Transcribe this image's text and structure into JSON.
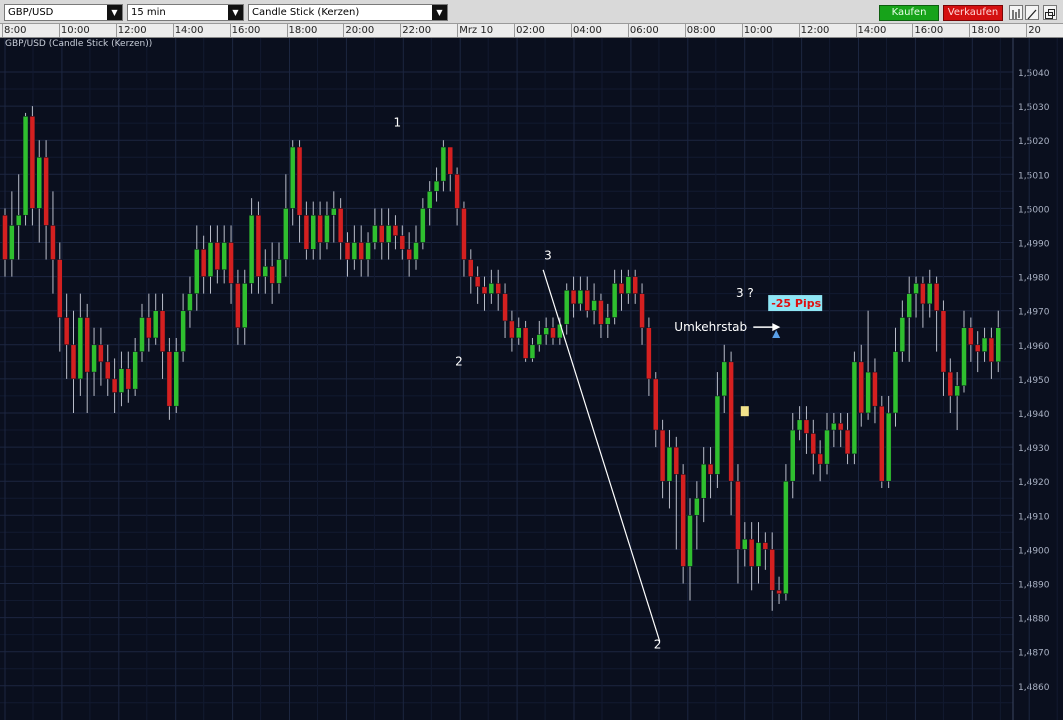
{
  "toolbar": {
    "symbol": "GBP/USD",
    "interval": "15 min",
    "chart_style": "Candle Stick (Kerzen)",
    "buy_label": "Kaufen",
    "sell_label": "Verkaufen",
    "colors": {
      "buy": "#17a31a",
      "sell": "#d41010"
    }
  },
  "chart_title": "GBP/USD (Candle Stick (Kerzen))",
  "chart_data": {
    "type": "candlestick",
    "x_tick_labels": [
      "8:00",
      "10:00",
      "12:00",
      "14:00",
      "16:00",
      "18:00",
      "20:00",
      "22:00",
      "Mrz 10",
      "02:00",
      "04:00",
      "06:00",
      "08:00",
      "10:00",
      "12:00",
      "14:00",
      "16:00",
      "18:00",
      "20"
    ],
    "y_tick_labels": [
      "1,5040",
      "1,5030",
      "1,5020",
      "1,5010",
      "1,5000",
      "1,4990",
      "1,4980",
      "1,4970",
      "1,4960",
      "1,4950",
      "1,4940",
      "1,4930",
      "1,4920",
      "1,4910",
      "1,4900",
      "1,4890",
      "1,4880",
      "1,4870",
      "1,4860"
    ],
    "ylim": [
      1.4855,
      1.505
    ],
    "colors": {
      "up": "#2fbf2f",
      "down": "#d42020",
      "background": "#0a0f1e",
      "grid": "#1c2640"
    },
    "candles": [
      [
        1.4998,
        1.4985,
        1.5,
        1.498
      ],
      [
        1.4985,
        1.4995,
        1.5005,
        1.498
      ],
      [
        1.4995,
        1.4998,
        1.501,
        1.4985
      ],
      [
        1.4998,
        1.5027,
        1.5028,
        1.4995
      ],
      [
        1.5027,
        1.5,
        1.503,
        1.4995
      ],
      [
        1.5,
        1.5015,
        1.502,
        1.499
      ],
      [
        1.5015,
        1.4995,
        1.502,
        1.4985
      ],
      [
        1.4995,
        1.4985,
        1.5005,
        1.4975
      ],
      [
        1.4985,
        1.4968,
        1.499,
        1.4958
      ],
      [
        1.4968,
        1.496,
        1.4975,
        1.495
      ],
      [
        1.496,
        1.495,
        1.497,
        1.494
      ],
      [
        1.495,
        1.4968,
        1.4975,
        1.4945
      ],
      [
        1.4968,
        1.4952,
        1.4972,
        1.494
      ],
      [
        1.4952,
        1.496,
        1.4965,
        1.4945
      ],
      [
        1.496,
        1.4955,
        1.4965,
        1.4948
      ],
      [
        1.4955,
        1.495,
        1.496,
        1.4945
      ],
      [
        1.495,
        1.4946,
        1.4956,
        1.494
      ],
      [
        1.4946,
        1.4953,
        1.4958,
        1.4942
      ],
      [
        1.4953,
        1.4947,
        1.4958,
        1.4943
      ],
      [
        1.4947,
        1.4958,
        1.4962,
        1.4945
      ],
      [
        1.4958,
        1.4968,
        1.4972,
        1.4955
      ],
      [
        1.4968,
        1.4962,
        1.4975,
        1.4958
      ],
      [
        1.4962,
        1.497,
        1.4975,
        1.496
      ],
      [
        1.497,
        1.4958,
        1.4975,
        1.495
      ],
      [
        1.4958,
        1.4942,
        1.4962,
        1.4938
      ],
      [
        1.4942,
        1.4958,
        1.4962,
        1.494
      ],
      [
        1.4958,
        1.497,
        1.4975,
        1.4955
      ],
      [
        1.497,
        1.4975,
        1.498,
        1.4965
      ],
      [
        1.4975,
        1.4988,
        1.4995,
        1.497
      ],
      [
        1.4988,
        1.498,
        1.4992,
        1.4975
      ],
      [
        1.498,
        1.499,
        1.4995,
        1.4975
      ],
      [
        1.499,
        1.4982,
        1.4995,
        1.4978
      ],
      [
        1.4982,
        1.499,
        1.4995,
        1.4978
      ],
      [
        1.499,
        1.4978,
        1.4995,
        1.4972
      ],
      [
        1.4978,
        1.4965,
        1.4982,
        1.496
      ],
      [
        1.4965,
        1.4978,
        1.4982,
        1.496
      ],
      [
        1.4978,
        1.4998,
        1.5003,
        1.4975
      ],
      [
        1.4998,
        1.498,
        1.5002,
        1.4975
      ],
      [
        1.498,
        1.4983,
        1.4988,
        1.4975
      ],
      [
        1.4983,
        1.4978,
        1.499,
        1.4972
      ],
      [
        1.4978,
        1.4985,
        1.499,
        1.4975
      ],
      [
        1.4985,
        1.5,
        1.501,
        1.498
      ],
      [
        1.5,
        1.5018,
        1.502,
        1.4995
      ],
      [
        1.5018,
        1.4998,
        1.502,
        1.499
      ],
      [
        1.4998,
        1.4988,
        1.5002,
        1.4985
      ],
      [
        1.4988,
        1.4998,
        1.5002,
        1.4985
      ],
      [
        1.4998,
        1.499,
        1.5002,
        1.4985
      ],
      [
        1.499,
        1.4998,
        1.5002,
        1.4988
      ],
      [
        1.4998,
        1.5,
        1.5005,
        1.499
      ],
      [
        1.5,
        1.499,
        1.5003,
        1.4985
      ],
      [
        1.499,
        1.4985,
        1.4993,
        1.498
      ],
      [
        1.4985,
        1.499,
        1.4995,
        1.4982
      ],
      [
        1.499,
        1.4985,
        1.4995,
        1.498
      ],
      [
        1.4985,
        1.499,
        1.4993,
        1.498
      ],
      [
        1.499,
        1.4995,
        1.5,
        1.4988
      ],
      [
        1.4995,
        1.499,
        1.5,
        1.4985
      ],
      [
        1.499,
        1.4995,
        1.5,
        1.4985
      ],
      [
        1.4995,
        1.4992,
        1.4998,
        1.4988
      ],
      [
        1.4992,
        1.4988,
        1.4995,
        1.4985
      ],
      [
        1.4988,
        1.4985,
        1.4993,
        1.498
      ],
      [
        1.4985,
        1.499,
        1.4995,
        1.4982
      ],
      [
        1.499,
        1.5,
        1.5003,
        1.4988
      ],
      [
        1.5,
        1.5005,
        1.5008,
        1.4995
      ],
      [
        1.5005,
        1.5008,
        1.5012,
        1.5002
      ],
      [
        1.5008,
        1.5018,
        1.502,
        1.5005
      ],
      [
        1.5018,
        1.501,
        1.5018,
        1.5005
      ],
      [
        1.501,
        1.5,
        1.5012,
        1.4995
      ],
      [
        1.5,
        1.4985,
        1.5002,
        1.498
      ],
      [
        1.4985,
        1.498,
        1.4988,
        1.4975
      ],
      [
        1.498,
        1.4977,
        1.4983,
        1.4972
      ],
      [
        1.4977,
        1.4975,
        1.498,
        1.497
      ],
      [
        1.4975,
        1.4978,
        1.4982,
        1.4972
      ],
      [
        1.4978,
        1.4975,
        1.4982,
        1.497
      ],
      [
        1.4975,
        1.4967,
        1.4978,
        1.4962
      ],
      [
        1.4967,
        1.4962,
        1.497,
        1.4958
      ],
      [
        1.4962,
        1.4965,
        1.4968,
        1.496
      ],
      [
        1.4965,
        1.4956,
        1.4967,
        1.4955
      ],
      [
        1.4956,
        1.496,
        1.4962,
        1.4955
      ],
      [
        1.496,
        1.4963,
        1.4967,
        1.4958
      ],
      [
        1.4963,
        1.4965,
        1.4968,
        1.496
      ],
      [
        1.4965,
        1.4962,
        1.4968,
        1.496
      ],
      [
        1.4962,
        1.4966,
        1.4968,
        1.496
      ],
      [
        1.4966,
        1.4976,
        1.4978,
        1.4963
      ],
      [
        1.4976,
        1.4972,
        1.498,
        1.4968
      ],
      [
        1.4972,
        1.4976,
        1.498,
        1.497
      ],
      [
        1.4976,
        1.497,
        1.498,
        1.4968
      ],
      [
        1.497,
        1.4973,
        1.4978,
        1.4966
      ],
      [
        1.4973,
        1.4966,
        1.4975,
        1.4962
      ],
      [
        1.4966,
        1.4968,
        1.4972,
        1.4962
      ],
      [
        1.4968,
        1.4978,
        1.4982,
        1.4966
      ],
      [
        1.4978,
        1.4975,
        1.4982,
        1.497
      ],
      [
        1.4975,
        1.498,
        1.4982,
        1.4972
      ],
      [
        1.498,
        1.4975,
        1.4982,
        1.4972
      ],
      [
        1.4975,
        1.4965,
        1.4978,
        1.496
      ],
      [
        1.4965,
        1.495,
        1.4968,
        1.4945
      ],
      [
        1.495,
        1.4935,
        1.4952,
        1.493
      ],
      [
        1.4935,
        1.492,
        1.4938,
        1.4915
      ],
      [
        1.492,
        1.493,
        1.4935,
        1.4912
      ],
      [
        1.493,
        1.4922,
        1.4933,
        1.49
      ],
      [
        1.4922,
        1.4895,
        1.4925,
        1.489
      ],
      [
        1.4895,
        1.491,
        1.4915,
        1.4885
      ],
      [
        1.491,
        1.4915,
        1.492,
        1.49
      ],
      [
        1.4915,
        1.4925,
        1.493,
        1.4908
      ],
      [
        1.4925,
        1.4922,
        1.493,
        1.4915
      ],
      [
        1.4922,
        1.4945,
        1.4952,
        1.4918
      ],
      [
        1.4945,
        1.4955,
        1.496,
        1.494
      ],
      [
        1.4955,
        1.492,
        1.4958,
        1.491
      ],
      [
        1.492,
        1.49,
        1.4925,
        1.489
      ],
      [
        1.49,
        1.4903,
        1.4908,
        1.4895
      ],
      [
        1.4903,
        1.4895,
        1.4908,
        1.4888
      ],
      [
        1.4895,
        1.4902,
        1.4908,
        1.489
      ],
      [
        1.4902,
        1.49,
        1.4905,
        1.4894
      ],
      [
        1.49,
        1.4888,
        1.4905,
        1.4882
      ],
      [
        1.4888,
        1.4887,
        1.4892,
        1.4884
      ],
      [
        1.4887,
        1.492,
        1.4925,
        1.4885
      ],
      [
        1.492,
        1.4935,
        1.494,
        1.4915
      ],
      [
        1.4935,
        1.4938,
        1.4942,
        1.4932
      ],
      [
        1.4938,
        1.4934,
        1.4942,
        1.4928
      ],
      [
        1.4934,
        1.4928,
        1.4938,
        1.4922
      ],
      [
        1.4928,
        1.4925,
        1.4932,
        1.492
      ],
      [
        1.4925,
        1.4935,
        1.494,
        1.4922
      ],
      [
        1.4935,
        1.4937,
        1.494,
        1.493
      ],
      [
        1.4937,
        1.4935,
        1.494,
        1.493
      ],
      [
        1.4935,
        1.4928,
        1.494,
        1.4925
      ],
      [
        1.4928,
        1.4955,
        1.4958,
        1.4925
      ],
      [
        1.4955,
        1.494,
        1.496,
        1.4936
      ],
      [
        1.494,
        1.4952,
        1.497,
        1.4938
      ],
      [
        1.4952,
        1.4942,
        1.4956,
        1.4937
      ],
      [
        1.4942,
        1.492,
        1.4945,
        1.4918
      ],
      [
        1.492,
        1.494,
        1.4945,
        1.4918
      ],
      [
        1.494,
        1.4958,
        1.4965,
        1.4936
      ],
      [
        1.4958,
        1.4968,
        1.4973,
        1.4955
      ],
      [
        1.4968,
        1.4975,
        1.498,
        1.4955
      ],
      [
        1.4975,
        1.4978,
        1.498,
        1.4968
      ],
      [
        1.4978,
        1.4972,
        1.498,
        1.4965
      ],
      [
        1.4972,
        1.4978,
        1.4982,
        1.4968
      ],
      [
        1.4978,
        1.497,
        1.498,
        1.4958
      ],
      [
        1.497,
        1.4952,
        1.4973,
        1.4945
      ],
      [
        1.4952,
        1.4945,
        1.4956,
        1.494
      ],
      [
        1.4945,
        1.4948,
        1.4952,
        1.4935
      ],
      [
        1.4948,
        1.4965,
        1.497,
        1.4946
      ],
      [
        1.4965,
        1.496,
        1.4968,
        1.4955
      ],
      [
        1.496,
        1.4958,
        1.4964,
        1.4952
      ],
      [
        1.4958,
        1.4962,
        1.4965,
        1.4955
      ],
      [
        1.4962,
        1.4955,
        1.4965,
        1.495
      ],
      [
        1.4955,
        1.4965,
        1.497,
        1.4952
      ]
    ],
    "annotations": [
      {
        "text": "1",
        "candle": 57,
        "price": 1.5024
      },
      {
        "text": "2",
        "candle": 66,
        "price": 1.4954
      },
      {
        "text": "3",
        "candle": 79,
        "price": 1.4985
      },
      {
        "text": "2",
        "candle": 95,
        "price": 1.4871
      },
      {
        "text": "3 ?",
        "candle": 107,
        "price": 1.4974
      },
      {
        "text": "Umkehrstab",
        "candle": 98,
        "price": 1.4964
      }
    ],
    "pip_label": "-25 Pips"
  }
}
